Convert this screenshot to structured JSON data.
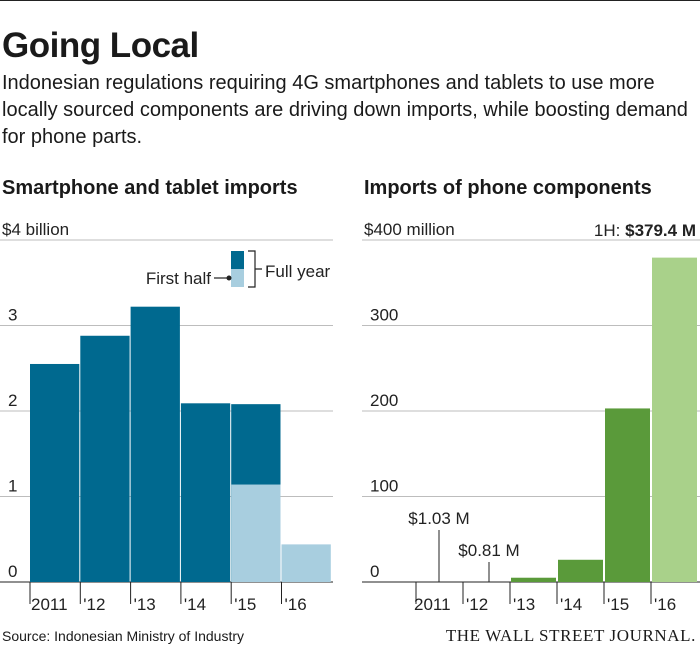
{
  "title": "Going Local",
  "subtitle": "Indonesian regulations requiring 4G smartphones and tablets to use more locally sourced components are driving down imports, while boosting demand for phone parts.",
  "source": "Source: Indonesian Ministry of Industry",
  "publisher": "THE WALL STREET JOURNAL.",
  "colors": {
    "dark_teal": "#00698f",
    "light_teal": "#a8cedf",
    "dark_green": "#5a9a3a",
    "light_green": "#a9d18a",
    "grid": "#bdbdbd"
  },
  "chart_data": [
    {
      "type": "bar",
      "title": "Smartphone and tablet imports",
      "unit_label": "$4 billion",
      "ylim": [
        0,
        4
      ],
      "yticks": [
        "0",
        "1",
        "2",
        "3"
      ],
      "categories": [
        "2011",
        "'12",
        "'13",
        "'14",
        "'15",
        "'16"
      ],
      "series": [
        {
          "name": "Full year",
          "values": [
            2.55,
            2.88,
            3.22,
            2.09,
            2.08,
            null
          ]
        },
        {
          "name": "First half",
          "values": [
            null,
            null,
            null,
            null,
            1.14,
            0.44
          ]
        }
      ],
      "legend": {
        "first_half": "First half",
        "full_year": "Full year"
      }
    },
    {
      "type": "bar",
      "title": "Imports of phone components",
      "unit_label": "$400 million",
      "ylim": [
        0,
        400
      ],
      "yticks": [
        "0",
        "100",
        "200",
        "300"
      ],
      "categories": [
        "2011",
        "'12",
        "'13",
        "'14",
        "'15",
        "'16"
      ],
      "series": [
        {
          "name": "Full year",
          "values": [
            1.03,
            0.81,
            5,
            26,
            203,
            null
          ]
        },
        {
          "name": "First half",
          "values": [
            null,
            null,
            null,
            null,
            null,
            379.4
          ]
        }
      ],
      "annotations": [
        {
          "category": "2011",
          "text": "$1.03 M"
        },
        {
          "category": "'12",
          "text": "$0.81 M"
        }
      ],
      "highlight": {
        "prefix": "1H: ",
        "text": "$379.4 M"
      }
    }
  ]
}
